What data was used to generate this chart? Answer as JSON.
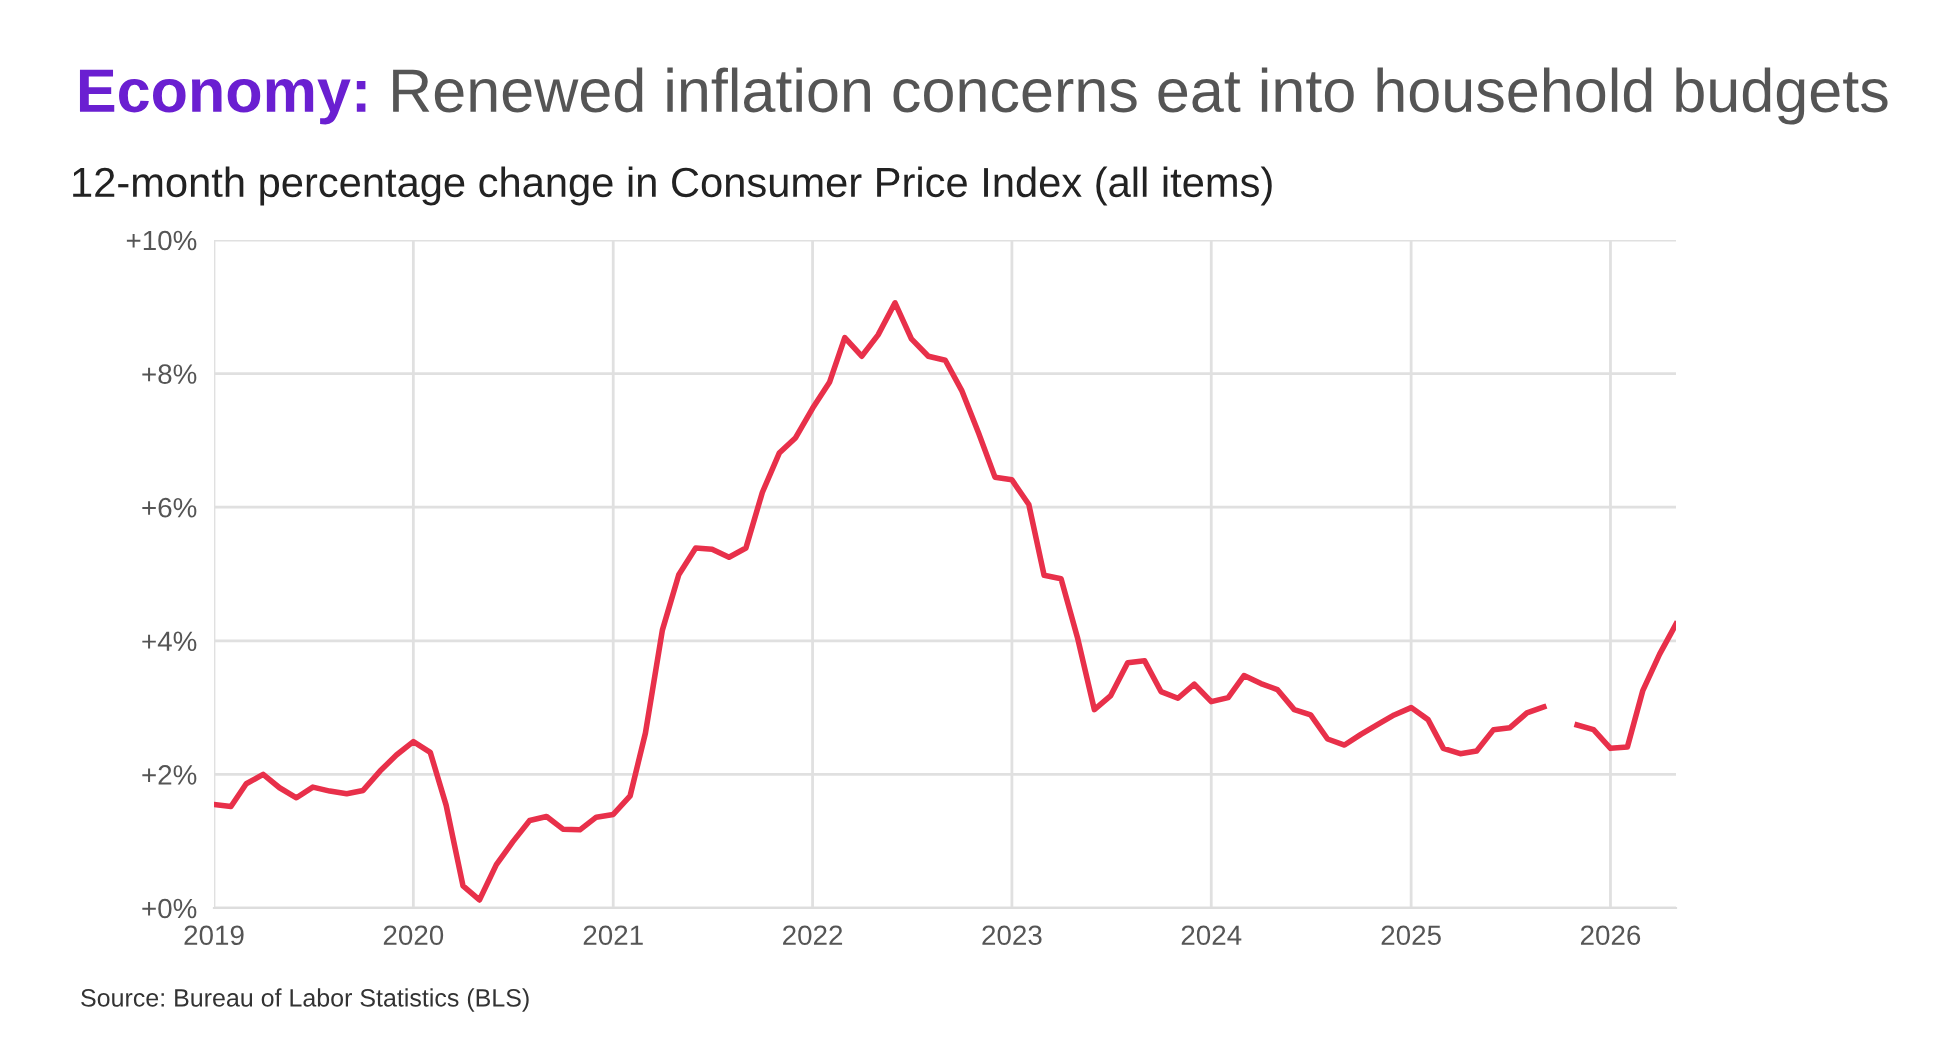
{
  "chart_data": {
    "type": "line",
    "title": "Economy: Renewed inflation concerns eat into household budgets",
    "subtitle": "12-month percentage change in Consumer Price Index (all items)",
    "annotations": [
      "Source: Bureau of Labor Statistics (BLS)"
    ],
    "x": [
      "2019-01",
      "2019-02",
      "2019-03",
      "2019-04",
      "2019-05",
      "2019-06",
      "2019-07",
      "2019-08",
      "2019-09",
      "2019-10",
      "2019-11",
      "2019-12",
      "2020-01",
      "2020-02",
      "2020-03",
      "2020-04",
      "2020-05",
      "2020-06",
      "2020-07",
      "2020-08",
      "2020-09",
      "2020-10",
      "2020-11",
      "2020-12",
      "2021-01",
      "2021-02",
      "2021-03",
      "2021-04",
      "2021-05",
      "2021-06",
      "2021-07",
      "2021-08",
      "2021-09",
      "2021-10",
      "2021-11",
      "2021-12",
      "2022-01",
      "2022-02",
      "2022-03",
      "2022-04",
      "2022-05",
      "2022-06",
      "2022-07",
      "2022-08",
      "2022-09",
      "2022-10",
      "2022-11",
      "2022-12",
      "2023-01",
      "2023-02",
      "2023-03",
      "2023-04",
      "2023-05",
      "2023-06",
      "2023-07",
      "2023-08",
      "2023-09",
      "2023-10",
      "2023-11",
      "2023-12",
      "2024-01",
      "2024-02",
      "2024-03",
      "2024-04",
      "2024-05",
      "2024-06",
      "2024-07",
      "2024-08",
      "2024-09",
      "2024-10",
      "2024-11",
      "2024-12",
      "2025-01",
      "2025-02",
      "2025-03",
      "2025-04",
      "2025-05",
      "2025-06",
      "2025-07",
      "2025-08",
      "2025-09",
      "2025-10",
      "2025-11",
      "2025-12",
      "2026-01",
      "2026-02",
      "2026-03",
      "2026-04",
      "2026-05"
    ],
    "series": [
      {
        "color": "#e8304a",
        "values": [
          1.55,
          1.52,
          1.86,
          2.0,
          1.8,
          1.65,
          1.81,
          1.75,
          1.71,
          1.76,
          2.05,
          2.29,
          2.49,
          2.33,
          1.54,
          0.33,
          0.12,
          0.65,
          0.99,
          1.31,
          1.37,
          1.18,
          1.17,
          1.36,
          1.4,
          1.68,
          2.62,
          4.16,
          4.99,
          5.39,
          5.37,
          5.25,
          5.39,
          6.22,
          6.81,
          7.04,
          7.48,
          7.87,
          8.54,
          8.26,
          8.58,
          9.06,
          8.52,
          8.26,
          8.2,
          7.75,
          7.11,
          6.45,
          6.41,
          6.04,
          4.98,
          4.93,
          4.05,
          2.97,
          3.18,
          3.67,
          3.7,
          3.24,
          3.14,
          3.35,
          3.09,
          3.15,
          3.48,
          3.36,
          3.27,
          2.97,
          2.89,
          2.53,
          2.44,
          2.6,
          2.75,
          2.89,
          3.0,
          2.82,
          2.39,
          2.31,
          2.35,
          2.67,
          2.7,
          2.92,
          3.01,
          null,
          2.74,
          2.67,
          2.39,
          2.41,
          3.25,
          3.8,
          4.25
        ]
      }
    ],
    "xlim": [
      "2019-01",
      "2026-05"
    ],
    "xticks": [
      {
        "value": "2019",
        "label": "2019"
      },
      {
        "value": "2020",
        "label": "2020"
      },
      {
        "value": "2021",
        "label": "2021"
      },
      {
        "value": "2022",
        "label": "2022"
      },
      {
        "value": "2023",
        "label": "2023"
      },
      {
        "value": "2024",
        "label": "2024"
      },
      {
        "value": "2025",
        "label": "2025"
      },
      {
        "value": "2026",
        "label": "2026"
      }
    ],
    "ylim": [
      0,
      10
    ],
    "yticks": [
      {
        "value": 0,
        "label": "+0%"
      },
      {
        "value": 2,
        "label": "+2%"
      },
      {
        "value": 4,
        "label": "+4%"
      },
      {
        "value": 6,
        "label": "+6%"
      },
      {
        "value": 8,
        "label": "+8%"
      },
      {
        "value": 10,
        "label": "+10%"
      }
    ],
    "grid": true,
    "marker": "none",
    "line_style": "solid"
  }
}
